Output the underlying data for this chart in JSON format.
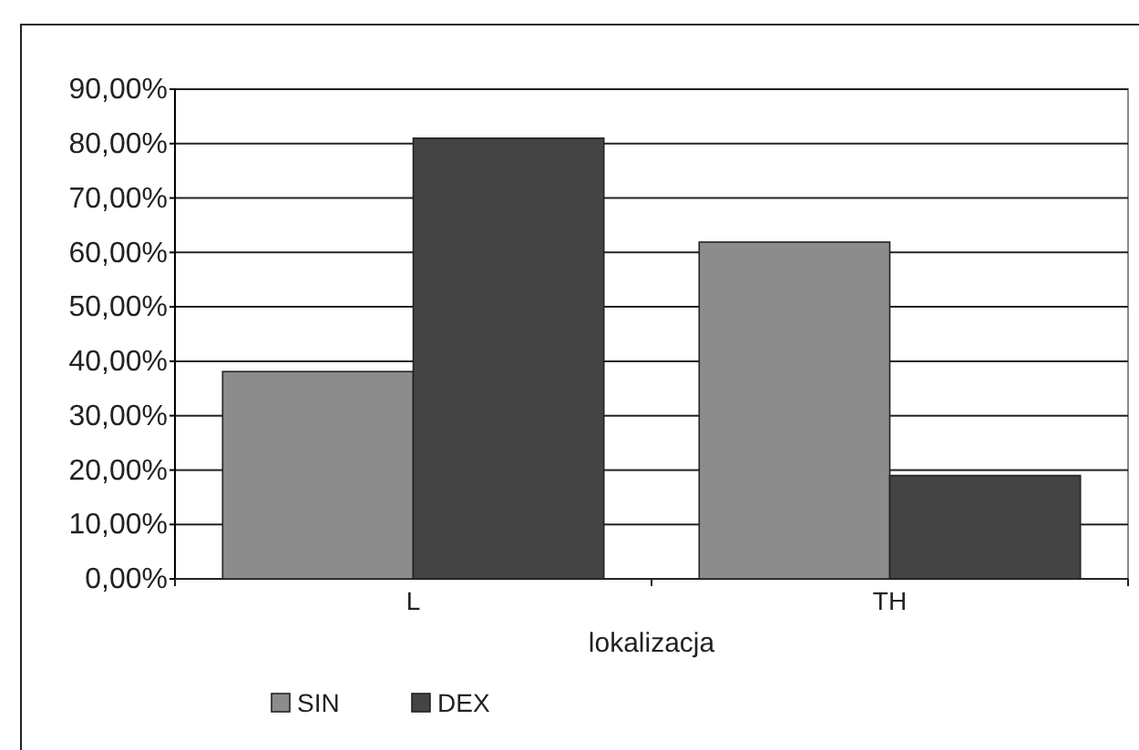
{
  "chart_data": {
    "type": "bar",
    "xlabel": "lokalizacja",
    "categories": [
      "L",
      "TH"
    ],
    "series": [
      {
        "name": "SIN",
        "color": "#8c8c8c",
        "values": [
          38.1,
          61.9
        ]
      },
      {
        "name": "DEX",
        "color": "#444444",
        "values": [
          81.0,
          19.0
        ]
      }
    ],
    "ylim": [
      0,
      90
    ],
    "yticks": [
      {
        "value": 0,
        "label": "0,00%"
      },
      {
        "value": 10,
        "label": "10,00%"
      },
      {
        "value": 20,
        "label": "20,00%"
      },
      {
        "value": 30,
        "label": "30,00%"
      },
      {
        "value": 40,
        "label": "40,00%"
      },
      {
        "value": 50,
        "label": "50,00%"
      },
      {
        "value": 60,
        "label": "60,00%"
      },
      {
        "value": 70,
        "label": "70,00%"
      },
      {
        "value": 80,
        "label": "80,00%"
      },
      {
        "value": 90,
        "label": "90,00%"
      }
    ],
    "grid": "y",
    "legend": "bottom left"
  }
}
